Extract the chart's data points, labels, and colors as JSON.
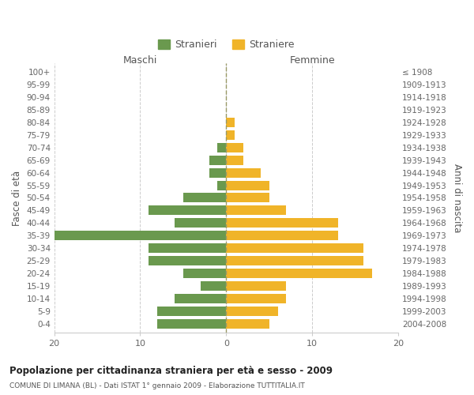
{
  "age_groups": [
    "0-4",
    "5-9",
    "10-14",
    "15-19",
    "20-24",
    "25-29",
    "30-34",
    "35-39",
    "40-44",
    "45-49",
    "50-54",
    "55-59",
    "60-64",
    "65-69",
    "70-74",
    "75-79",
    "80-84",
    "85-89",
    "90-94",
    "95-99",
    "100+"
  ],
  "birth_years": [
    "2004-2008",
    "1999-2003",
    "1994-1998",
    "1989-1993",
    "1984-1988",
    "1979-1983",
    "1974-1978",
    "1969-1973",
    "1964-1968",
    "1959-1963",
    "1954-1958",
    "1949-1953",
    "1944-1948",
    "1939-1943",
    "1934-1938",
    "1929-1933",
    "1924-1928",
    "1919-1923",
    "1914-1918",
    "1909-1913",
    "≤ 1908"
  ],
  "males": [
    8,
    8,
    6,
    3,
    5,
    9,
    9,
    20,
    6,
    9,
    5,
    1,
    2,
    2,
    1,
    0,
    0,
    0,
    0,
    0,
    0
  ],
  "females": [
    5,
    6,
    7,
    7,
    17,
    16,
    16,
    13,
    13,
    7,
    5,
    5,
    4,
    2,
    2,
    1,
    1,
    0,
    0,
    0,
    0
  ],
  "male_color": "#6a994e",
  "female_color": "#f0b429",
  "grid_color": "#cccccc",
  "zero_line_color": "#aaaaaa",
  "title_main": "Popolazione per cittadinanza straniera per età e sesso - 2009",
  "title_sub": "COMUNE DI LIMANA (BL) - Dati ISTAT 1° gennaio 2009 - Elaborazione TUTTITALIA.IT",
  "ylabel_left": "Fasce di età",
  "ylabel_right": "Anni di nascita",
  "xlabel_left": "Maschi",
  "xlabel_right": "Femmine",
  "legend_male": "Stranieri",
  "legend_female": "Straniere",
  "xlim": 20,
  "xticks": [
    -20,
    -10,
    0,
    10,
    20
  ],
  "xticklabels": [
    "20",
    "10",
    "0",
    "10",
    "20"
  ]
}
